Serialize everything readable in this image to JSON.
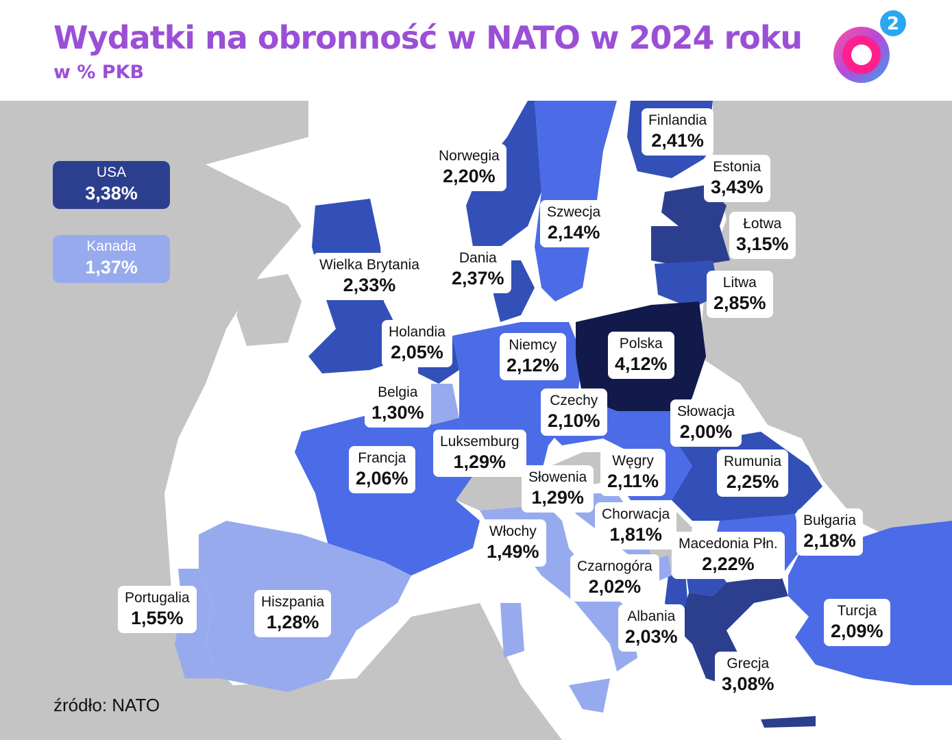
{
  "title": "Wydatki na obronność w NATO w 2024 roku",
  "subtitle": "w % PKB",
  "logo": {
    "superscript": "2",
    "icon": "o2-logo-icon"
  },
  "colors": {
    "title": "#9b4fd6",
    "sea": "#ffffff",
    "non_nato_land": "#c4c4c4",
    "shade_lightest": "#97aaee",
    "shade_medium": "#4c6be6",
    "shade_dark": "#3250b8",
    "shade_darker": "#2c3f8e",
    "shade_darkest": "#121a4b"
  },
  "legend": [
    {
      "name": "USA",
      "value": "3,38%",
      "color": "#2c3f8e"
    },
    {
      "name": "Kanada",
      "value": "1,37%",
      "color": "#97aaee"
    }
  ],
  "countries": [
    {
      "name": "Finlandia",
      "value": "2,41%"
    },
    {
      "name": "Norwegia",
      "value": "2,20%"
    },
    {
      "name": "Estonia",
      "value": "3,43%"
    },
    {
      "name": "Szwecja",
      "value": "2,14%"
    },
    {
      "name": "Łotwa",
      "value": "3,15%"
    },
    {
      "name": "Wielka Brytania",
      "value": "2,33%"
    },
    {
      "name": "Dania",
      "value": "2,37%"
    },
    {
      "name": "Litwa",
      "value": "2,85%"
    },
    {
      "name": "Holandia",
      "value": "2,05%"
    },
    {
      "name": "Niemcy",
      "value": "2,12%"
    },
    {
      "name": "Polska",
      "value": "4,12%"
    },
    {
      "name": "Belgia",
      "value": "1,30%"
    },
    {
      "name": "Czechy",
      "value": "2,10%"
    },
    {
      "name": "Słowacja",
      "value": "2,00%"
    },
    {
      "name": "Luksemburg",
      "value": "1,29%"
    },
    {
      "name": "Francja",
      "value": "2,06%"
    },
    {
      "name": "Węgry",
      "value": "2,11%"
    },
    {
      "name": "Rumunia",
      "value": "2,25%"
    },
    {
      "name": "Słowenia",
      "value": "1,29%"
    },
    {
      "name": "Chorwacja",
      "value": "1,81%"
    },
    {
      "name": "Bułgaria",
      "value": "2,18%"
    },
    {
      "name": "Włochy",
      "value": "1,49%"
    },
    {
      "name": "Macedonia Płn.",
      "value": "2,22%"
    },
    {
      "name": "Czarnogóra",
      "value": "2,02%"
    },
    {
      "name": "Portugalia",
      "value": "1,55%"
    },
    {
      "name": "Hiszpania",
      "value": "1,28%"
    },
    {
      "name": "Albania",
      "value": "2,03%"
    },
    {
      "name": "Turcja",
      "value": "2,09%"
    },
    {
      "name": "Grecja",
      "value": "3,08%"
    }
  ],
  "source": "źródło: NATO"
}
